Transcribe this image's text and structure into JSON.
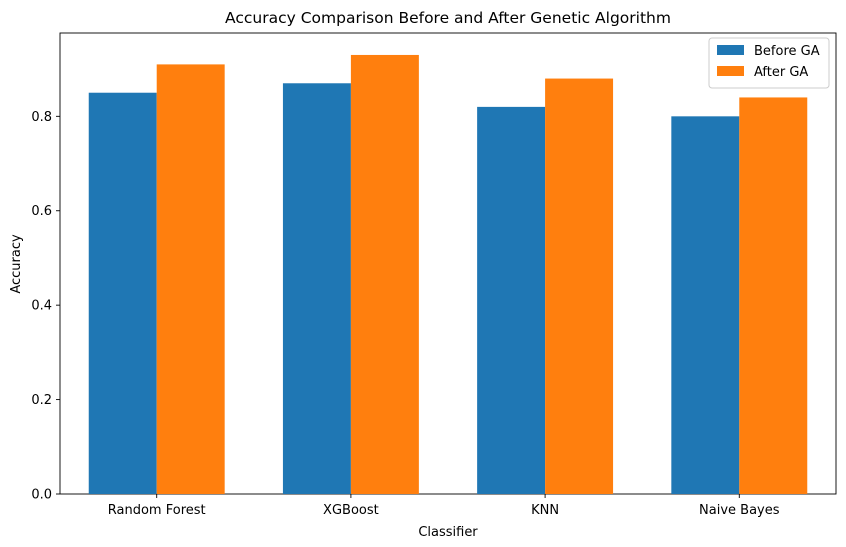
{
  "chart_data": {
    "type": "bar",
    "title": "Accuracy Comparison Before and After Genetic Algorithm",
    "xlabel": "Classifier",
    "ylabel": "Accuracy",
    "categories": [
      "Random Forest",
      "XGBoost",
      "KNN",
      "Naive Bayes"
    ],
    "series": [
      {
        "name": "Before GA",
        "values": [
          0.85,
          0.87,
          0.82,
          0.8
        ],
        "color": "#1f77b4"
      },
      {
        "name": "After GA",
        "values": [
          0.91,
          0.93,
          0.88,
          0.84
        ],
        "color": "#ff7f0e"
      }
    ],
    "ylim": [
      0,
      0.9765
    ],
    "yticks": [
      0.0,
      0.2,
      0.4,
      0.6,
      0.8
    ],
    "ytick_labels": [
      "0.0",
      "0.2",
      "0.4",
      "0.6",
      "0.8"
    ],
    "grid": false,
    "legend_position": "top-right"
  }
}
